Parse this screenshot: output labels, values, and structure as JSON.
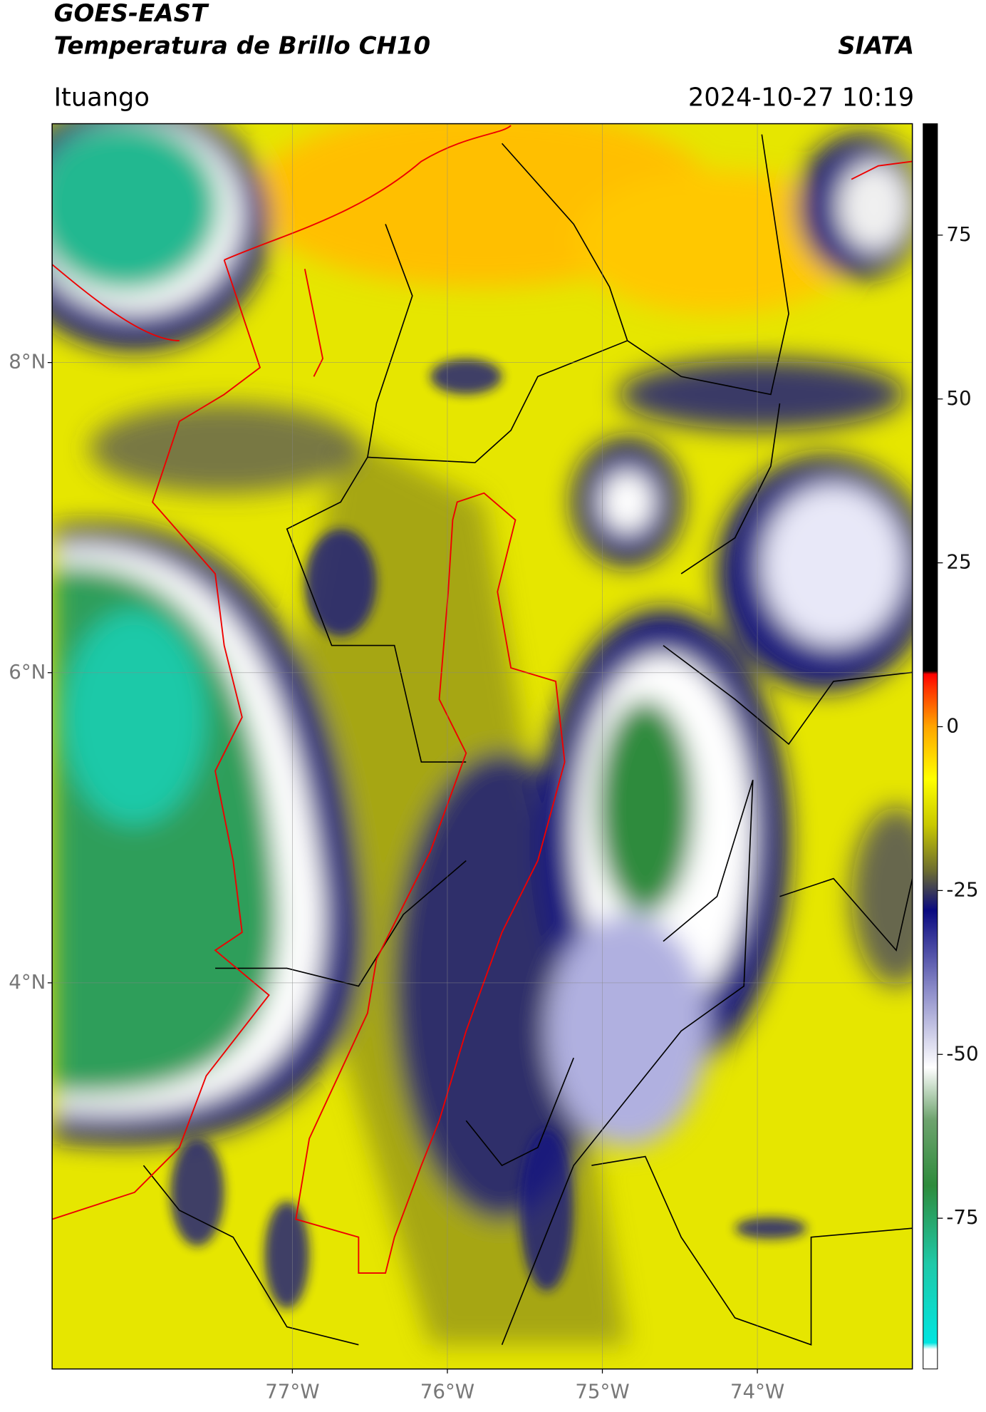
{
  "header": {
    "title_line1": "GOES-EAST",
    "title_line2": "Temperatura de Brillo CH10",
    "brand": "SIATA",
    "location": "Ituango",
    "timestamp": "2024-10-27 10:19"
  },
  "map": {
    "lon_range": [
      -78.55,
      -73.0
    ],
    "lat_range": [
      1.51,
      9.54
    ],
    "lat_ticks": [
      {
        "value": 8,
        "label": "8°N"
      },
      {
        "value": 6,
        "label": "6°N"
      },
      {
        "value": 4,
        "label": "4°N"
      }
    ],
    "lon_ticks": [
      {
        "value": -77,
        "label": "77°W"
      },
      {
        "value": -76,
        "label": "76°W"
      },
      {
        "value": -75,
        "label": "75°W"
      },
      {
        "value": -74,
        "label": "74°W"
      }
    ]
  },
  "colorbar": {
    "range": [
      -98,
      92
    ],
    "ticks": [
      75,
      50,
      25,
      0,
      -25,
      -50,
      -75
    ],
    "color_stops": [
      {
        "value": -98,
        "color": "#ffffff"
      },
      {
        "value": -95,
        "color": "#ffffff"
      },
      {
        "value": -94,
        "color": "#00e5e0"
      },
      {
        "value": -82,
        "color": "#1fc9a8"
      },
      {
        "value": -70,
        "color": "#2e8b3c"
      },
      {
        "value": -60,
        "color": "#6ea36e"
      },
      {
        "value": -52,
        "color": "#ffffff"
      },
      {
        "value": -40,
        "color": "#8a8ac8"
      },
      {
        "value": -28,
        "color": "#0a0a80"
      },
      {
        "value": -22,
        "color": "#6c6c30"
      },
      {
        "value": -15,
        "color": "#c8c800"
      },
      {
        "value": -8,
        "color": "#ffff00"
      },
      {
        "value": 0,
        "color": "#ffa500"
      },
      {
        "value": 6,
        "color": "#ff3000"
      },
      {
        "value": 8,
        "color": "#ff0000"
      },
      {
        "value": 8.5,
        "color": "#000000"
      },
      {
        "value": 92,
        "color": "#000000"
      }
    ]
  }
}
